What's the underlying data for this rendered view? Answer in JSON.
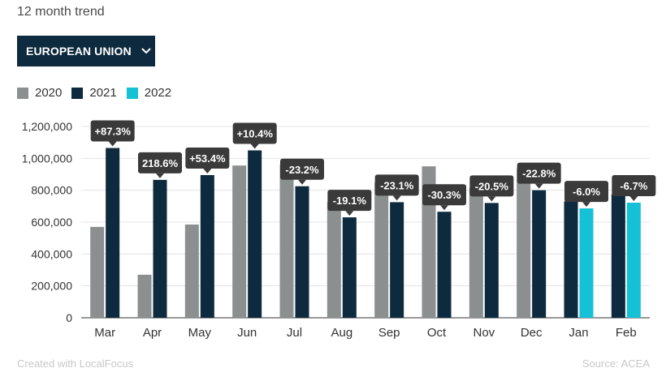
{
  "header": {
    "subtitle": "12 month trend"
  },
  "dropdown": {
    "label": "EUROPEAN UNION"
  },
  "legend": [
    {
      "label": "2020",
      "color": "#8c8f8f"
    },
    {
      "label": "2021",
      "color": "#0d2a3e"
    },
    {
      "label": "2022",
      "color": "#15c1d6"
    }
  ],
  "footer": {
    "left": "Created with LocalFocus",
    "right": "Source: ACEA"
  },
  "chart_data": {
    "type": "bar",
    "categories": [
      "Mar",
      "Apr",
      "May",
      "Jun",
      "Jul",
      "Aug",
      "Sep",
      "Oct",
      "Nov",
      "Dec",
      "Jan",
      "Feb"
    ],
    "series": [
      {
        "name": "2020",
        "color": "#8c8f8f",
        "values": [
          570000,
          270000,
          585000,
          955000,
          960000,
          725000,
          850000,
          950000,
          815000,
          935000,
          null,
          null
        ]
      },
      {
        "name": "2021",
        "color": "#0d2a3e",
        "values": [
          1065000,
          865000,
          895000,
          1050000,
          825000,
          630000,
          725000,
          665000,
          720000,
          800000,
          730000,
          775000
        ]
      },
      {
        "name": "2022",
        "color": "#15c1d6",
        "values": [
          null,
          null,
          null,
          null,
          null,
          null,
          null,
          null,
          null,
          null,
          686000,
          722000
        ]
      }
    ],
    "change_labels": [
      "+87.3%",
      "218.6%",
      "+53.4%",
      "+10.4%",
      "-23.2%",
      "-19.1%",
      "-23.1%",
      "-30.3%",
      "-20.5%",
      "-22.8%",
      "-6.0%",
      "-6.7%"
    ],
    "ylim": [
      0,
      1300000
    ],
    "y_ticks": [
      0,
      200000,
      400000,
      600000,
      800000,
      1000000,
      1200000
    ],
    "y_tick_labels": [
      "0",
      "200,000",
      "400,000",
      "600,000",
      "800,000",
      "1,000,000",
      "1,200,000"
    ],
    "grid": true,
    "legend_position": "top-left"
  }
}
